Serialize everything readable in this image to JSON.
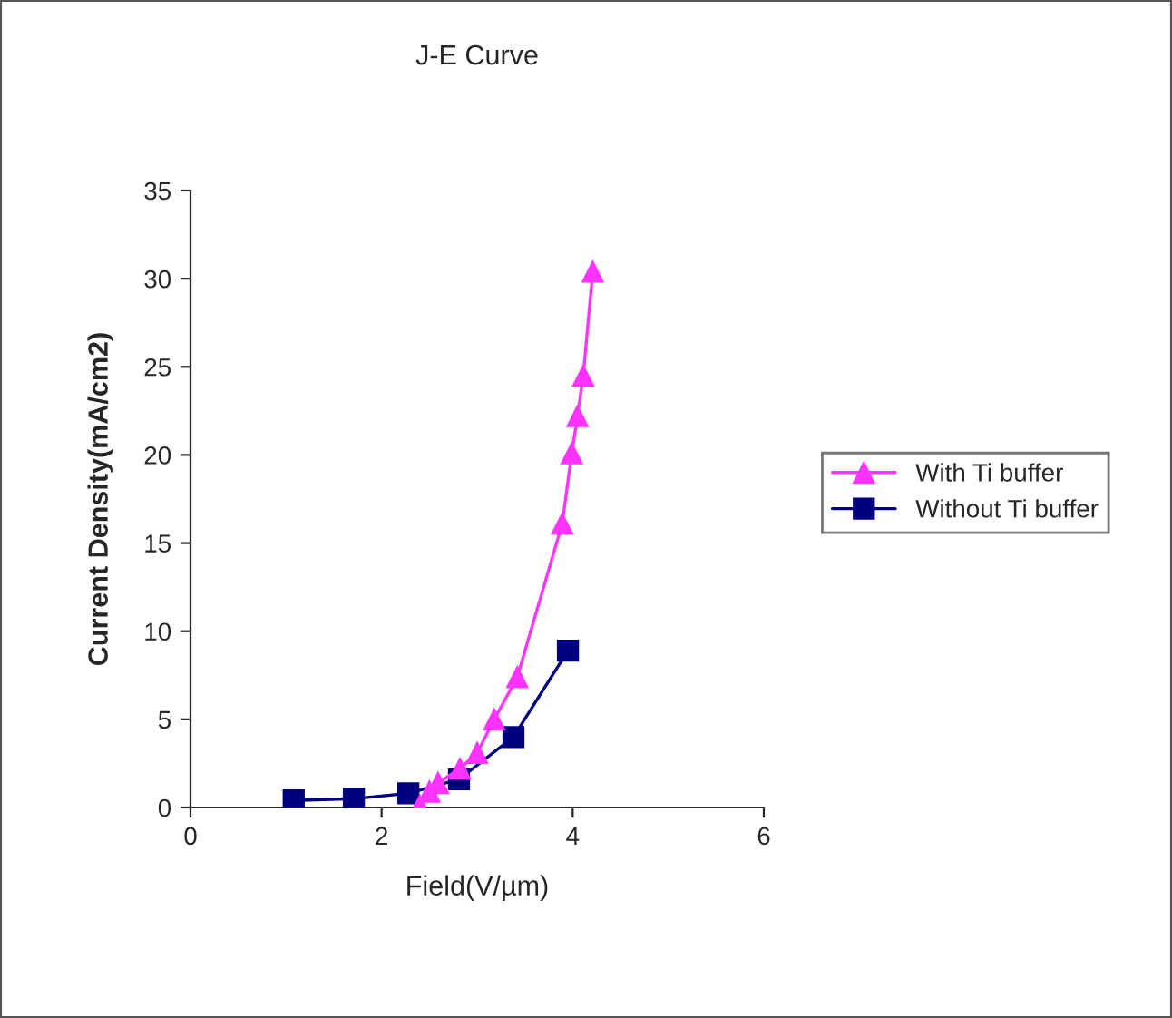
{
  "chart_data": {
    "type": "line",
    "title": "J-E Curve",
    "xlabel": "Field(V/µm)",
    "ylabel": "Current Density(mA/cm2)",
    "xlim": [
      0,
      6
    ],
    "xticks": [
      0,
      2,
      4,
      6
    ],
    "ylim": [
      0,
      35
    ],
    "yticks": [
      0,
      5,
      10,
      15,
      20,
      25,
      30,
      35
    ],
    "grid": false,
    "legend": "right",
    "series": [
      {
        "name": "With Ti buffer",
        "color": "#ff33ff",
        "marker": "triangle",
        "x": [
          2.4,
          2.5,
          2.59,
          2.82,
          3.0,
          3.18,
          3.42,
          3.89,
          3.99,
          4.05,
          4.11,
          4.21
        ],
        "values": [
          0.1,
          0.9,
          1.4,
          2.2,
          3.1,
          5.0,
          7.4,
          16.1,
          20.1,
          22.2,
          24.5,
          30.4
        ]
      },
      {
        "name": "Without Ti buffer",
        "color": "#000080",
        "marker": "square",
        "x": [
          1.08,
          1.71,
          2.28,
          2.81,
          3.38,
          3.95
        ],
        "values": [
          0.4,
          0.5,
          0.8,
          1.6,
          4.0,
          8.9
        ]
      }
    ]
  }
}
